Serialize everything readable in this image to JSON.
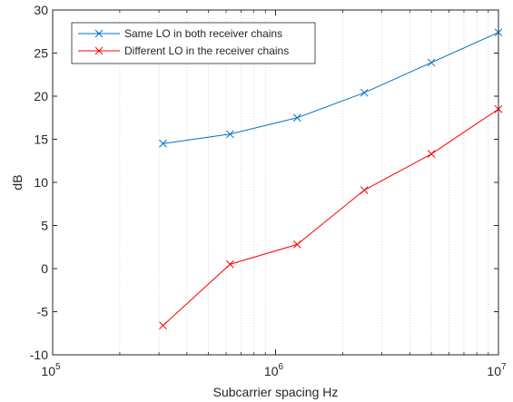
{
  "chart_data": {
    "type": "line",
    "title": "",
    "xlabel": "Subcarrier spacing Hz",
    "ylabel": "dB",
    "xscale": "log",
    "xlim": [
      100000,
      10000000
    ],
    "ylim": [
      -10,
      30
    ],
    "grid": "x-minor-dotted",
    "legend_position": "top-left",
    "x_tick_labels": [
      {
        "value": 100000,
        "base": "10",
        "exp": "5"
      },
      {
        "value": 1000000,
        "base": "10",
        "exp": "6"
      },
      {
        "value": 10000000,
        "base": "10",
        "exp": "7"
      }
    ],
    "y_ticks": [
      -10,
      -5,
      0,
      5,
      10,
      15,
      20,
      25,
      30
    ],
    "x": [
      312500,
      625000,
      1250000,
      2500000,
      5000000,
      10000000
    ],
    "series": [
      {
        "name": "Same LO in both receiver chains",
        "color": "#0072BD",
        "marker": "x",
        "values": [
          14.5,
          15.6,
          17.5,
          20.4,
          23.9,
          27.4
        ]
      },
      {
        "name": "Different LO in the receiver chains",
        "color": "#FF0000",
        "marker": "x",
        "values": [
          -6.6,
          0.5,
          2.8,
          9.1,
          13.3,
          18.5
        ]
      }
    ]
  }
}
